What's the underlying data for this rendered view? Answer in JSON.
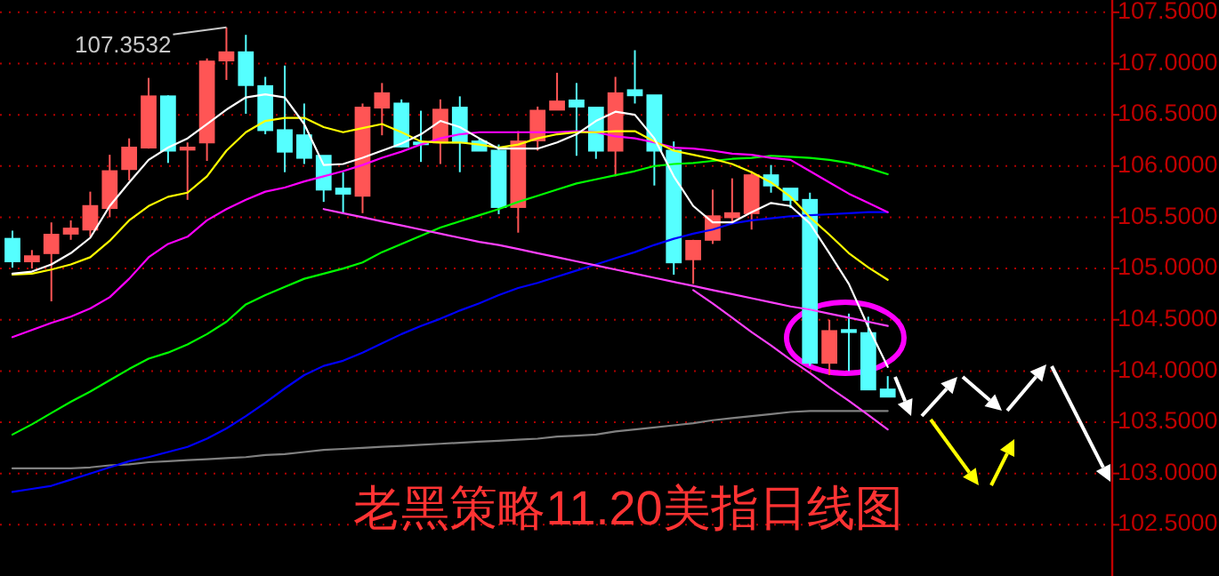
{
  "chart_data": {
    "type": "candlestick",
    "title": "老黑策略11.20美指日线图",
    "categories": [
      null,
      null,
      null,
      null,
      null,
      null,
      null,
      null,
      null,
      null,
      null,
      null,
      null,
      null,
      null,
      null,
      null,
      null,
      null,
      null,
      null,
      null,
      null,
      null,
      null,
      null,
      null,
      null,
      null,
      null,
      null,
      null,
      null,
      null,
      null,
      null,
      null,
      null,
      null,
      null,
      null,
      null,
      null,
      null,
      null,
      null
    ],
    "ylim": [
      102.0,
      107.62
    ],
    "yticks": [
      {
        "value": 102.5,
        "label": "102.5000"
      },
      {
        "value": 103.0,
        "label": "103.0000"
      },
      {
        "value": 103.5,
        "label": "103.5000"
      },
      {
        "value": 104.0,
        "label": "104.0000"
      },
      {
        "value": 104.5,
        "label": "104.5000"
      },
      {
        "value": 105.0,
        "label": "105.0000"
      },
      {
        "value": 105.5,
        "label": "105.5000"
      },
      {
        "value": 106.0,
        "label": "106.0000"
      },
      {
        "value": 106.5,
        "label": "106.5000"
      },
      {
        "value": 107.0,
        "label": "107.0000"
      },
      {
        "value": 107.5,
        "label": "107.5000"
      }
    ],
    "tick_labels": "y",
    "grid": "y",
    "colors": [
      "#55ffff",
      "#ff5555",
      "#ff5555",
      "#ff5555",
      "#ff5555",
      "#ff5555",
      "#ff5555",
      "#ff5555",
      "#55ffff",
      "#ff5555",
      "#ff5555",
      "#ff5555",
      "#55ffff",
      "#55ffff",
      "#55ffff",
      "#55ffff",
      "#55ffff",
      "#55ffff",
      "#ff5555",
      "#ff5555",
      "#55ffff",
      "#55ffff",
      "#ff5555",
      "#55ffff",
      "#55ffff",
      "#55ffff",
      "#ff5555",
      "#ff5555",
      "#ff5555",
      "#55ffff",
      "#55ffff",
      "#ff5555",
      "#55ffff",
      "#55ffff",
      "#55ffff",
      "#ff5555",
      "#ff5555",
      "#ff5555",
      "#ff5555",
      "#55ffff",
      "#55ffff",
      "#55ffff",
      "#ff5555",
      "#55ffff",
      "#55ffff",
      "#55ffff"
    ],
    "ohlc": [
      [
        105.29,
        105.37,
        105.01,
        105.07
      ],
      [
        105.07,
        105.18,
        105.0,
        105.12
      ],
      [
        105.15,
        105.45,
        104.68,
        105.33
      ],
      [
        105.34,
        105.47,
        105.28,
        105.39
      ],
      [
        105.38,
        105.75,
        105.31,
        105.61
      ],
      [
        105.59,
        106.11,
        105.5,
        105.95
      ],
      [
        105.97,
        106.27,
        105.86,
        106.18
      ],
      [
        106.18,
        106.86,
        106.17,
        106.68
      ],
      [
        106.68,
        106.69,
        106.03,
        106.15
      ],
      [
        106.16,
        106.23,
        105.67,
        106.18
      ],
      [
        106.23,
        107.05,
        106.05,
        107.02
      ],
      [
        107.03,
        107.3532,
        106.84,
        107.11
      ],
      [
        107.11,
        107.28,
        106.51,
        106.79
      ],
      [
        106.78,
        106.87,
        106.31,
        106.35
      ],
      [
        106.35,
        106.98,
        105.94,
        106.14
      ],
      [
        106.3,
        106.61,
        106.02,
        106.08
      ],
      [
        106.1,
        106.1,
        105.65,
        105.77
      ],
      [
        105.78,
        105.94,
        105.54,
        105.73
      ],
      [
        105.71,
        106.61,
        105.54,
        106.57
      ],
      [
        106.57,
        106.81,
        106.3,
        106.71
      ],
      [
        106.61,
        106.65,
        106.18,
        106.19
      ],
      [
        106.23,
        106.54,
        106.04,
        106.22
      ],
      [
        106.23,
        106.65,
        106.02,
        106.55
      ],
      [
        106.57,
        106.68,
        105.94,
        106.23
      ],
      [
        106.24,
        106.27,
        106.15,
        106.15
      ],
      [
        106.15,
        106.21,
        105.53,
        105.6
      ],
      [
        105.6,
        106.34,
        105.35,
        106.24
      ],
      [
        106.25,
        106.58,
        106.15,
        106.54
      ],
      [
        106.55,
        106.91,
        106.55,
        106.63
      ],
      [
        106.64,
        106.81,
        106.1,
        106.58
      ],
      [
        106.57,
        106.57,
        106.07,
        106.15
      ],
      [
        106.15,
        106.87,
        105.9,
        106.71
      ],
      [
        106.74,
        107.13,
        106.61,
        106.69
      ],
      [
        106.69,
        106.69,
        105.81,
        106.15
      ],
      [
        106.15,
        106.24,
        104.94,
        105.06
      ],
      [
        105.09,
        105.28,
        104.85,
        105.27
      ],
      [
        105.28,
        105.77,
        105.24,
        105.51
      ],
      [
        105.5,
        105.88,
        105.45,
        105.54
      ],
      [
        105.54,
        105.95,
        105.38,
        105.91
      ],
      [
        105.91,
        106.01,
        105.74,
        105.81
      ],
      [
        105.78,
        105.78,
        105.59,
        105.67
      ],
      [
        105.67,
        105.74,
        104.05,
        104.08
      ],
      [
        104.08,
        104.5,
        103.96,
        104.39
      ],
      [
        104.4,
        104.56,
        104.0,
        104.38
      ],
      [
        104.37,
        104.53,
        103.82,
        103.82
      ],
      [
        103.82,
        103.95,
        103.75,
        103.75
      ]
    ],
    "series": [
      {
        "type": "line",
        "color": "#808080",
        "values": [
          103.05,
          103.05,
          103.05,
          103.05,
          103.06,
          103.08,
          103.09,
          103.11,
          103.12,
          103.13,
          103.14,
          103.15,
          103.16,
          103.18,
          103.19,
          103.21,
          103.23,
          103.24,
          103.25,
          103.26,
          103.27,
          103.28,
          103.29,
          103.3,
          103.31,
          103.32,
          103.33,
          103.34,
          103.36,
          103.37,
          103.38,
          103.41,
          103.43,
          103.45,
          103.47,
          103.49,
          103.52,
          103.54,
          103.56,
          103.58,
          103.6,
          103.61,
          103.61,
          103.61,
          103.61,
          103.61
        ]
      },
      {
        "type": "line",
        "color": "#0000ff",
        "values": [
          102.82,
          102.85,
          102.88,
          102.94,
          103.0,
          103.06,
          103.12,
          103.16,
          103.21,
          103.26,
          103.34,
          103.44,
          103.56,
          103.69,
          103.83,
          103.96,
          104.05,
          104.1,
          104.18,
          104.27,
          104.36,
          104.44,
          104.51,
          104.59,
          104.66,
          104.74,
          104.81,
          104.86,
          104.92,
          104.98,
          105.04,
          105.1,
          105.16,
          105.23,
          105.29,
          105.34,
          105.38,
          105.44,
          105.47,
          105.49,
          105.51,
          105.52,
          105.53,
          105.54,
          105.55,
          105.55
        ]
      },
      {
        "type": "line",
        "color": "#00ff00",
        "values": [
          103.38,
          103.48,
          103.59,
          103.7,
          103.8,
          103.91,
          104.02,
          104.12,
          104.18,
          104.26,
          104.36,
          104.48,
          104.65,
          104.74,
          104.82,
          104.9,
          104.95,
          105.0,
          105.06,
          105.16,
          105.24,
          105.32,
          105.4,
          105.46,
          105.52,
          105.58,
          105.65,
          105.71,
          105.77,
          105.83,
          105.87,
          105.91,
          105.95,
          106.0,
          106.02,
          106.03,
          106.05,
          106.07,
          106.08,
          106.1,
          106.09,
          106.08,
          106.06,
          106.03,
          105.98,
          105.92
        ]
      },
      {
        "type": "line",
        "color": "#ff00ff",
        "values": [
          104.33,
          104.4,
          104.47,
          104.53,
          104.61,
          104.72,
          104.9,
          105.11,
          105.24,
          105.31,
          105.47,
          105.58,
          105.67,
          105.75,
          105.79,
          105.85,
          105.9,
          105.95,
          106.01,
          106.08,
          106.14,
          106.21,
          106.27,
          106.31,
          106.33,
          106.33,
          106.33,
          106.33,
          106.33,
          106.34,
          106.33,
          106.29,
          106.27,
          106.23,
          106.18,
          106.17,
          106.15,
          106.12,
          106.11,
          106.08,
          106.06,
          105.95,
          105.84,
          105.73,
          105.64,
          105.55
        ]
      },
      {
        "type": "line",
        "color": "#ffff00",
        "values": [
          104.94,
          104.95,
          104.99,
          105.04,
          105.11,
          105.27,
          105.47,
          105.61,
          105.7,
          105.74,
          105.9,
          106.15,
          106.33,
          106.44,
          106.47,
          106.47,
          106.38,
          106.33,
          106.37,
          106.41,
          106.33,
          106.24,
          106.23,
          106.23,
          106.21,
          106.18,
          106.21,
          106.27,
          106.31,
          106.33,
          106.33,
          106.34,
          106.34,
          106.24,
          106.15,
          106.11,
          106.07,
          106.02,
          105.94,
          105.84,
          105.7,
          105.5,
          105.33,
          105.15,
          105.01,
          104.89
        ]
      },
      {
        "type": "line",
        "color": "#ffffff",
        "values": [
          104.95,
          104.97,
          105.04,
          105.15,
          105.3,
          105.61,
          105.84,
          106.06,
          106.18,
          106.27,
          106.41,
          106.55,
          106.67,
          106.7,
          106.67,
          106.41,
          106.01,
          106.02,
          106.08,
          106.15,
          106.22,
          106.31,
          106.44,
          106.38,
          106.27,
          106.17,
          106.17,
          106.17,
          106.23,
          106.31,
          106.44,
          106.53,
          106.5,
          106.27,
          105.9,
          105.61,
          105.45,
          105.45,
          105.55,
          105.64,
          105.61,
          105.44,
          105.15,
          104.85,
          104.43,
          104.04
        ]
      },
      {
        "type": "line",
        "color": "#ff40ff",
        "values": [
          null,
          null,
          null,
          null,
          null,
          null,
          null,
          null,
          null,
          null,
          null,
          null,
          null,
          null,
          null,
          null,
          105.58,
          105.54,
          105.5,
          105.46,
          105.42,
          105.38,
          105.34,
          105.3,
          105.26,
          105.23,
          105.19,
          105.15,
          105.11,
          105.07,
          105.03,
          104.99,
          104.95,
          104.91,
          104.87,
          104.83,
          104.79,
          104.75,
          104.71,
          104.67,
          104.63,
          104.6,
          104.56,
          104.52,
          104.48,
          104.44
        ]
      },
      {
        "type": "line",
        "color": "#ff40ff",
        "values": [
          null,
          null,
          null,
          null,
          null,
          null,
          null,
          null,
          null,
          null,
          null,
          null,
          null,
          null,
          null,
          null,
          null,
          null,
          null,
          null,
          null,
          null,
          null,
          null,
          null,
          null,
          null,
          null,
          null,
          null,
          null,
          null,
          null,
          null,
          null,
          104.79,
          104.66,
          104.52,
          104.38,
          104.25,
          104.11,
          103.98,
          103.84,
          103.71,
          103.57,
          103.43
        ]
      }
    ],
    "annotations": [
      "107.3532"
    ]
  }
}
